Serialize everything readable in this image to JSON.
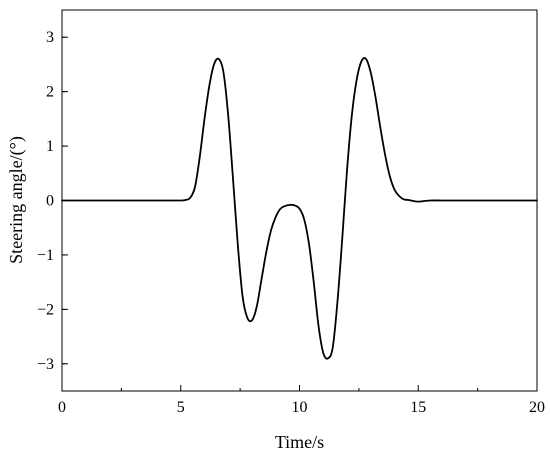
{
  "chart_data": {
    "type": "line",
    "title": "",
    "xlabel": "Time/s",
    "ylabel": "Steering angle/(°)",
    "xlim": [
      0,
      20
    ],
    "ylim": [
      -3.5,
      3.5
    ],
    "x_ticks": [
      0,
      5,
      10,
      15,
      20
    ],
    "y_ticks": [
      3,
      2,
      1,
      0,
      -1,
      -2,
      -3
    ],
    "x_tick_labels": [
      "0",
      "5",
      "10",
      "15",
      "20"
    ],
    "y_tick_labels": [
      "3",
      "2",
      "1",
      "0",
      "−1",
      "−2",
      "−3"
    ],
    "grid": false,
    "legend": "none",
    "series": [
      {
        "color": "#000000",
        "x": [
          0,
          1,
          2,
          3,
          4,
          5,
          5.2,
          5.4,
          5.6,
          5.8,
          6.0,
          6.2,
          6.4,
          6.6,
          6.8,
          7.0,
          7.2,
          7.4,
          7.6,
          7.8,
          8.0,
          8.2,
          8.4,
          8.6,
          8.8,
          9.0,
          9.2,
          9.4,
          9.6,
          9.8,
          10.0,
          10.2,
          10.4,
          10.6,
          10.8,
          11.0,
          11.2,
          11.4,
          11.6,
          11.8,
          12.0,
          12.2,
          12.4,
          12.6,
          12.8,
          13.0,
          13.2,
          13.4,
          13.6,
          13.8,
          14.0,
          14.2,
          14.4,
          14.6,
          14.8,
          15.0,
          15.5,
          16,
          17,
          18,
          19,
          20
        ],
        "y": [
          0,
          0,
          0,
          0,
          0,
          0,
          0.01,
          0.05,
          0.25,
          0.8,
          1.5,
          2.1,
          2.5,
          2.6,
          2.35,
          1.55,
          0.4,
          -0.8,
          -1.75,
          -2.15,
          -2.2,
          -1.95,
          -1.45,
          -0.95,
          -0.55,
          -0.3,
          -0.15,
          -0.1,
          -0.08,
          -0.09,
          -0.15,
          -0.35,
          -0.8,
          -1.5,
          -2.3,
          -2.8,
          -2.9,
          -2.7,
          -1.85,
          -0.7,
          0.55,
          1.55,
          2.2,
          2.55,
          2.6,
          2.35,
          1.9,
          1.35,
          0.85,
          0.45,
          0.2,
          0.08,
          0.02,
          0.01,
          -0.01,
          -0.02,
          0,
          0,
          0,
          0,
          0,
          0
        ]
      }
    ]
  }
}
